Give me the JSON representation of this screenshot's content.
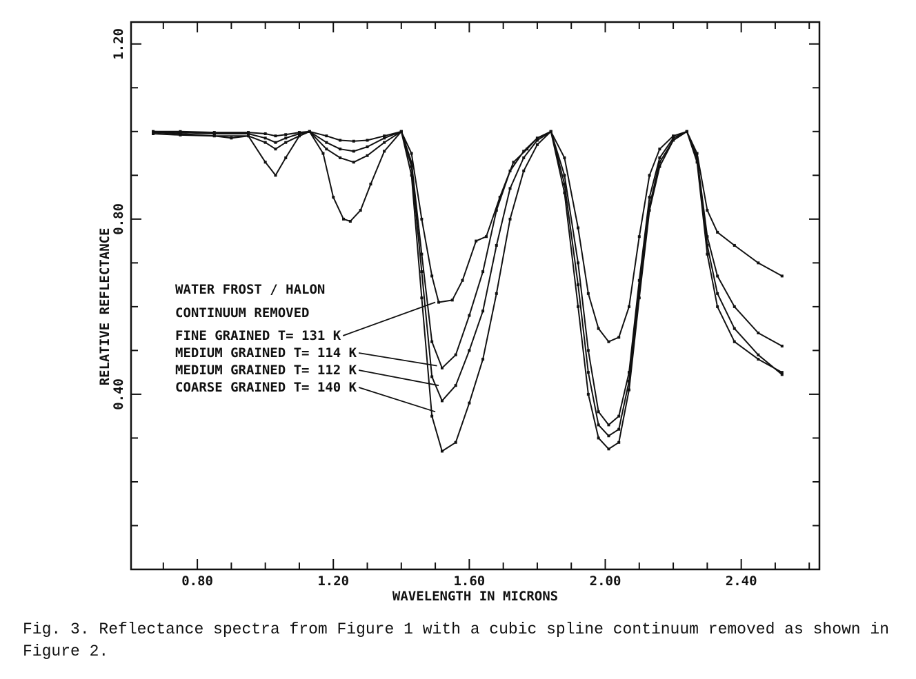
{
  "caption": "Fig. 3.  Reflectance spectra from Figure 1 with a cubic spline continuum removed as shown in Figure 2.",
  "chart_data": {
    "type": "line",
    "title": "",
    "xlabel": "WAVELENGTH IN MICRONS",
    "ylabel": "RELATIVE REFLECTANCE",
    "xlim": [
      0.605,
      2.63
    ],
    "ylim": [
      0.0,
      1.25
    ],
    "x_ticks": [
      0.8,
      1.2,
      1.6,
      2.0,
      2.4
    ],
    "x_tick_labels": [
      "0.80",
      "1.20",
      "1.60",
      "2.00",
      "2.40"
    ],
    "y_ticks": [
      0.4,
      0.8,
      1.2
    ],
    "y_tick_labels": [
      "0.40",
      "0.80",
      "1.20"
    ],
    "x_minor_step": 0.1,
    "y_minor_step": 0.1,
    "grid": false,
    "legend_placement": "left-center",
    "annotations": {
      "heading_1": "WATER FROST / HALON",
      "heading_2": "CONTINUUM REMOVED"
    },
    "line_color": "#111111",
    "series": [
      {
        "name": "FINE GRAINED T= 131 K",
        "points": [
          [
            0.67,
            1.0
          ],
          [
            0.75,
            1.0
          ],
          [
            0.85,
            0.998
          ],
          [
            0.95,
            0.998
          ],
          [
            1.0,
            0.995
          ],
          [
            1.03,
            0.99
          ],
          [
            1.06,
            0.993
          ],
          [
            1.1,
            0.998
          ],
          [
            1.13,
            1.0
          ],
          [
            1.18,
            0.99
          ],
          [
            1.22,
            0.98
          ],
          [
            1.26,
            0.978
          ],
          [
            1.3,
            0.98
          ],
          [
            1.35,
            0.99
          ],
          [
            1.4,
            1.0
          ],
          [
            1.43,
            0.95
          ],
          [
            1.46,
            0.8
          ],
          [
            1.49,
            0.67
          ],
          [
            1.51,
            0.61
          ],
          [
            1.55,
            0.615
          ],
          [
            1.58,
            0.66
          ],
          [
            1.62,
            0.75
          ],
          [
            1.65,
            0.76
          ],
          [
            1.69,
            0.85
          ],
          [
            1.73,
            0.93
          ],
          [
            1.77,
            0.96
          ],
          [
            1.8,
            0.985
          ],
          [
            1.84,
            1.0
          ],
          [
            1.88,
            0.94
          ],
          [
            1.92,
            0.78
          ],
          [
            1.95,
            0.63
          ],
          [
            1.98,
            0.55
          ],
          [
            2.01,
            0.52
          ],
          [
            2.04,
            0.53
          ],
          [
            2.07,
            0.6
          ],
          [
            2.1,
            0.76
          ],
          [
            2.13,
            0.9
          ],
          [
            2.16,
            0.96
          ],
          [
            2.2,
            0.99
          ],
          [
            2.24,
            1.0
          ],
          [
            2.27,
            0.95
          ],
          [
            2.3,
            0.82
          ],
          [
            2.33,
            0.77
          ],
          [
            2.38,
            0.74
          ],
          [
            2.45,
            0.7
          ],
          [
            2.52,
            0.67
          ]
        ]
      },
      {
        "name": "MEDIUM GRAINED T= 114 K",
        "points": [
          [
            0.67,
            1.0
          ],
          [
            0.75,
            0.998
          ],
          [
            0.85,
            0.995
          ],
          [
            0.95,
            0.995
          ],
          [
            1.0,
            0.985
          ],
          [
            1.03,
            0.975
          ],
          [
            1.06,
            0.985
          ],
          [
            1.1,
            0.995
          ],
          [
            1.13,
            1.0
          ],
          [
            1.18,
            0.975
          ],
          [
            1.22,
            0.96
          ],
          [
            1.26,
            0.955
          ],
          [
            1.3,
            0.965
          ],
          [
            1.35,
            0.985
          ],
          [
            1.4,
            1.0
          ],
          [
            1.43,
            0.93
          ],
          [
            1.46,
            0.72
          ],
          [
            1.49,
            0.52
          ],
          [
            1.52,
            0.46
          ],
          [
            1.56,
            0.49
          ],
          [
            1.6,
            0.58
          ],
          [
            1.64,
            0.68
          ],
          [
            1.68,
            0.82
          ],
          [
            1.72,
            0.91
          ],
          [
            1.76,
            0.955
          ],
          [
            1.8,
            0.985
          ],
          [
            1.84,
            1.0
          ],
          [
            1.88,
            0.9
          ],
          [
            1.92,
            0.7
          ],
          [
            1.95,
            0.5
          ],
          [
            1.98,
            0.36
          ],
          [
            2.01,
            0.33
          ],
          [
            2.04,
            0.35
          ],
          [
            2.07,
            0.45
          ],
          [
            2.1,
            0.66
          ],
          [
            2.13,
            0.85
          ],
          [
            2.16,
            0.94
          ],
          [
            2.2,
            0.985
          ],
          [
            2.24,
            1.0
          ],
          [
            2.27,
            0.94
          ],
          [
            2.3,
            0.76
          ],
          [
            2.33,
            0.67
          ],
          [
            2.38,
            0.6
          ],
          [
            2.45,
            0.54
          ],
          [
            2.52,
            0.51
          ]
        ]
      },
      {
        "name": "MEDIUM GRAINED T= 112 K",
        "points": [
          [
            0.67,
            0.998
          ],
          [
            0.75,
            0.995
          ],
          [
            0.85,
            0.99
          ],
          [
            0.95,
            0.99
          ],
          [
            1.0,
            0.975
          ],
          [
            1.03,
            0.96
          ],
          [
            1.06,
            0.975
          ],
          [
            1.1,
            0.99
          ],
          [
            1.13,
            1.0
          ],
          [
            1.18,
            0.96
          ],
          [
            1.22,
            0.94
          ],
          [
            1.26,
            0.93
          ],
          [
            1.3,
            0.945
          ],
          [
            1.35,
            0.975
          ],
          [
            1.4,
            1.0
          ],
          [
            1.43,
            0.92
          ],
          [
            1.46,
            0.68
          ],
          [
            1.49,
            0.44
          ],
          [
            1.52,
            0.385
          ],
          [
            1.56,
            0.42
          ],
          [
            1.6,
            0.5
          ],
          [
            1.64,
            0.59
          ],
          [
            1.68,
            0.74
          ],
          [
            1.72,
            0.87
          ],
          [
            1.76,
            0.94
          ],
          [
            1.8,
            0.98
          ],
          [
            1.84,
            1.0
          ],
          [
            1.88,
            0.88
          ],
          [
            1.92,
            0.65
          ],
          [
            1.95,
            0.45
          ],
          [
            1.98,
            0.33
          ],
          [
            2.01,
            0.305
          ],
          [
            2.04,
            0.32
          ],
          [
            2.07,
            0.43
          ],
          [
            2.1,
            0.64
          ],
          [
            2.13,
            0.83
          ],
          [
            2.16,
            0.93
          ],
          [
            2.2,
            0.98
          ],
          [
            2.24,
            1.0
          ],
          [
            2.27,
            0.94
          ],
          [
            2.3,
            0.74
          ],
          [
            2.33,
            0.63
          ],
          [
            2.38,
            0.55
          ],
          [
            2.45,
            0.49
          ],
          [
            2.52,
            0.445
          ]
        ]
      },
      {
        "name": "COARSE GRAINED T= 140 K",
        "points": [
          [
            0.67,
            0.995
          ],
          [
            0.75,
            0.992
          ],
          [
            0.85,
            0.99
          ],
          [
            0.9,
            0.985
          ],
          [
            0.95,
            0.99
          ],
          [
            1.0,
            0.93
          ],
          [
            1.03,
            0.9
          ],
          [
            1.06,
            0.94
          ],
          [
            1.1,
            0.99
          ],
          [
            1.13,
            1.0
          ],
          [
            1.17,
            0.95
          ],
          [
            1.2,
            0.85
          ],
          [
            1.23,
            0.8
          ],
          [
            1.25,
            0.795
          ],
          [
            1.28,
            0.82
          ],
          [
            1.31,
            0.88
          ],
          [
            1.35,
            0.955
          ],
          [
            1.4,
            1.0
          ],
          [
            1.43,
            0.9
          ],
          [
            1.46,
            0.62
          ],
          [
            1.49,
            0.35
          ],
          [
            1.52,
            0.27
          ],
          [
            1.56,
            0.29
          ],
          [
            1.6,
            0.38
          ],
          [
            1.64,
            0.48
          ],
          [
            1.68,
            0.63
          ],
          [
            1.72,
            0.8
          ],
          [
            1.76,
            0.91
          ],
          [
            1.8,
            0.97
          ],
          [
            1.84,
            1.0
          ],
          [
            1.88,
            0.86
          ],
          [
            1.92,
            0.6
          ],
          [
            1.95,
            0.4
          ],
          [
            1.98,
            0.3
          ],
          [
            2.01,
            0.275
          ],
          [
            2.04,
            0.29
          ],
          [
            2.07,
            0.41
          ],
          [
            2.1,
            0.62
          ],
          [
            2.13,
            0.82
          ],
          [
            2.16,
            0.92
          ],
          [
            2.2,
            0.98
          ],
          [
            2.24,
            1.0
          ],
          [
            2.27,
            0.93
          ],
          [
            2.3,
            0.72
          ],
          [
            2.33,
            0.6
          ],
          [
            2.38,
            0.52
          ],
          [
            2.45,
            0.48
          ],
          [
            2.52,
            0.45
          ]
        ]
      }
    ]
  }
}
